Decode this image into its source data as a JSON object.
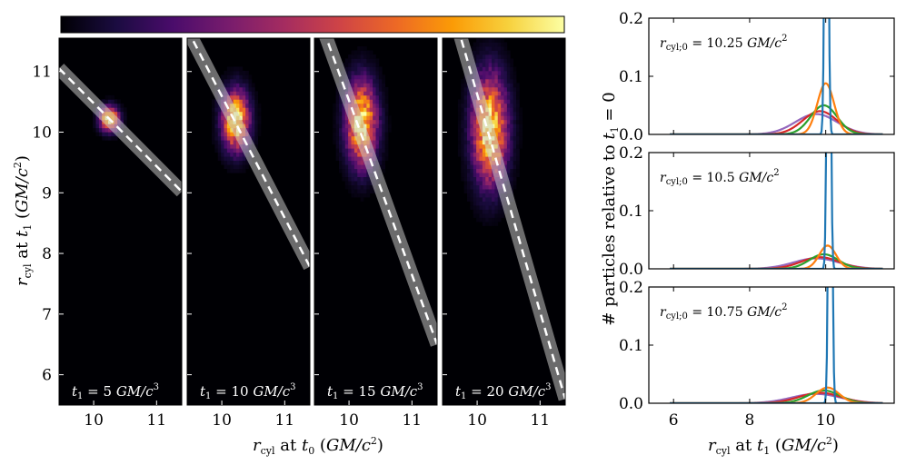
{
  "colormap": [
    "#000004",
    "#1b0c41",
    "#4a0c6b",
    "#781c6d",
    "#a52c60",
    "#cf4446",
    "#ed6925",
    "#fb9b06",
    "#f7d13d",
    "#fcffa4"
  ],
  "chart_data": [
    {
      "type": "heatmap",
      "title": "",
      "xlabel": "r_cyl at t_0 (GM/c^2)",
      "ylabel": "r_cyl at t_1 (GM/c^2)",
      "xlim": [
        9.45,
        11.4
      ],
      "ylim": [
        5.5,
        11.55
      ],
      "xticks": [
        10,
        11
      ],
      "yticks": [
        6,
        7,
        8,
        9,
        10,
        11
      ],
      "colorbar": true,
      "panels": [
        {
          "label": "t_1 = 5 GM/c^3",
          "center": [
            10.25,
            10.22
          ],
          "spread_x": 0.1,
          "spread_y": 0.13,
          "line_at_x0": [
            9.45,
            11.05
          ],
          "line_at_x1": [
            11.4,
            9.02
          ]
        },
        {
          "label": "t_1 = 10 GM/c^3",
          "center": [
            10.22,
            10.2
          ],
          "spread_x": 0.14,
          "spread_y": 0.32,
          "line_at_x0": [
            9.45,
            11.7
          ],
          "line_at_x1": [
            11.4,
            7.78
          ]
        },
        {
          "label": "t_1 = 15 GM/c^3",
          "center": [
            10.2,
            10.15
          ],
          "spread_x": 0.16,
          "spread_y": 0.45,
          "line_at_x0": [
            9.45,
            12.1
          ],
          "line_at_x1": [
            11.4,
            6.5
          ]
        },
        {
          "label": "t_1 = 20 GM/c^3",
          "center": [
            10.2,
            10.05
          ],
          "spread_x": 0.18,
          "spread_y": 0.58,
          "line_at_x0": [
            9.45,
            12.6
          ],
          "line_at_x1": [
            11.4,
            5.6
          ]
        }
      ]
    },
    {
      "type": "line",
      "title": "",
      "xlabel": "r_cyl at t_1 (GM/c^2)",
      "ylabel": "# particles relative to t_1 = 0",
      "xlim": [
        5.35,
        11.8
      ],
      "ylim": [
        0,
        0.2
      ],
      "xticks": [
        6,
        8,
        10
      ],
      "yticks": [
        0.0,
        0.1,
        0.2
      ],
      "series_colors": [
        "#1f77b4",
        "#ff7f0e",
        "#2ca02c",
        "#d62728",
        "#9467bd"
      ],
      "panels": [
        {
          "label": "r_cyl;0 = 10.25 GM/c^2",
          "center": 10.25,
          "series": [
            {
              "peak": 1.0,
              "width": 0.04,
              "center": 10.02
            },
            {
              "peak": 0.088,
              "width": 0.22,
              "center": 10.0
            },
            {
              "peak": 0.05,
              "width": 0.35,
              "center": 9.95
            },
            {
              "peak": 0.04,
              "width": 0.45,
              "center": 9.85
            },
            {
              "peak": 0.035,
              "width": 0.55,
              "center": 9.75
            }
          ]
        },
        {
          "label": "r_cyl;0 = 10.5 GM/c^2",
          "center": 10.5,
          "series": [
            {
              "peak": 1.0,
              "width": 0.04,
              "center": 10.08
            },
            {
              "peak": 0.04,
              "width": 0.22,
              "center": 10.05
            },
            {
              "peak": 0.025,
              "width": 0.38,
              "center": 9.95
            },
            {
              "peak": 0.02,
              "width": 0.5,
              "center": 9.85
            },
            {
              "peak": 0.018,
              "width": 0.6,
              "center": 9.75
            }
          ]
        },
        {
          "label": "r_cyl;0 = 10.75 GM/c^2",
          "center": 10.75,
          "series": [
            {
              "peak": 1.0,
              "width": 0.04,
              "center": 10.12
            },
            {
              "peak": 0.027,
              "width": 0.3,
              "center": 10.05
            },
            {
              "peak": 0.022,
              "width": 0.42,
              "center": 9.95
            },
            {
              "peak": 0.018,
              "width": 0.55,
              "center": 9.85
            },
            {
              "peak": 0.016,
              "width": 0.65,
              "center": 9.75
            }
          ]
        }
      ]
    }
  ]
}
